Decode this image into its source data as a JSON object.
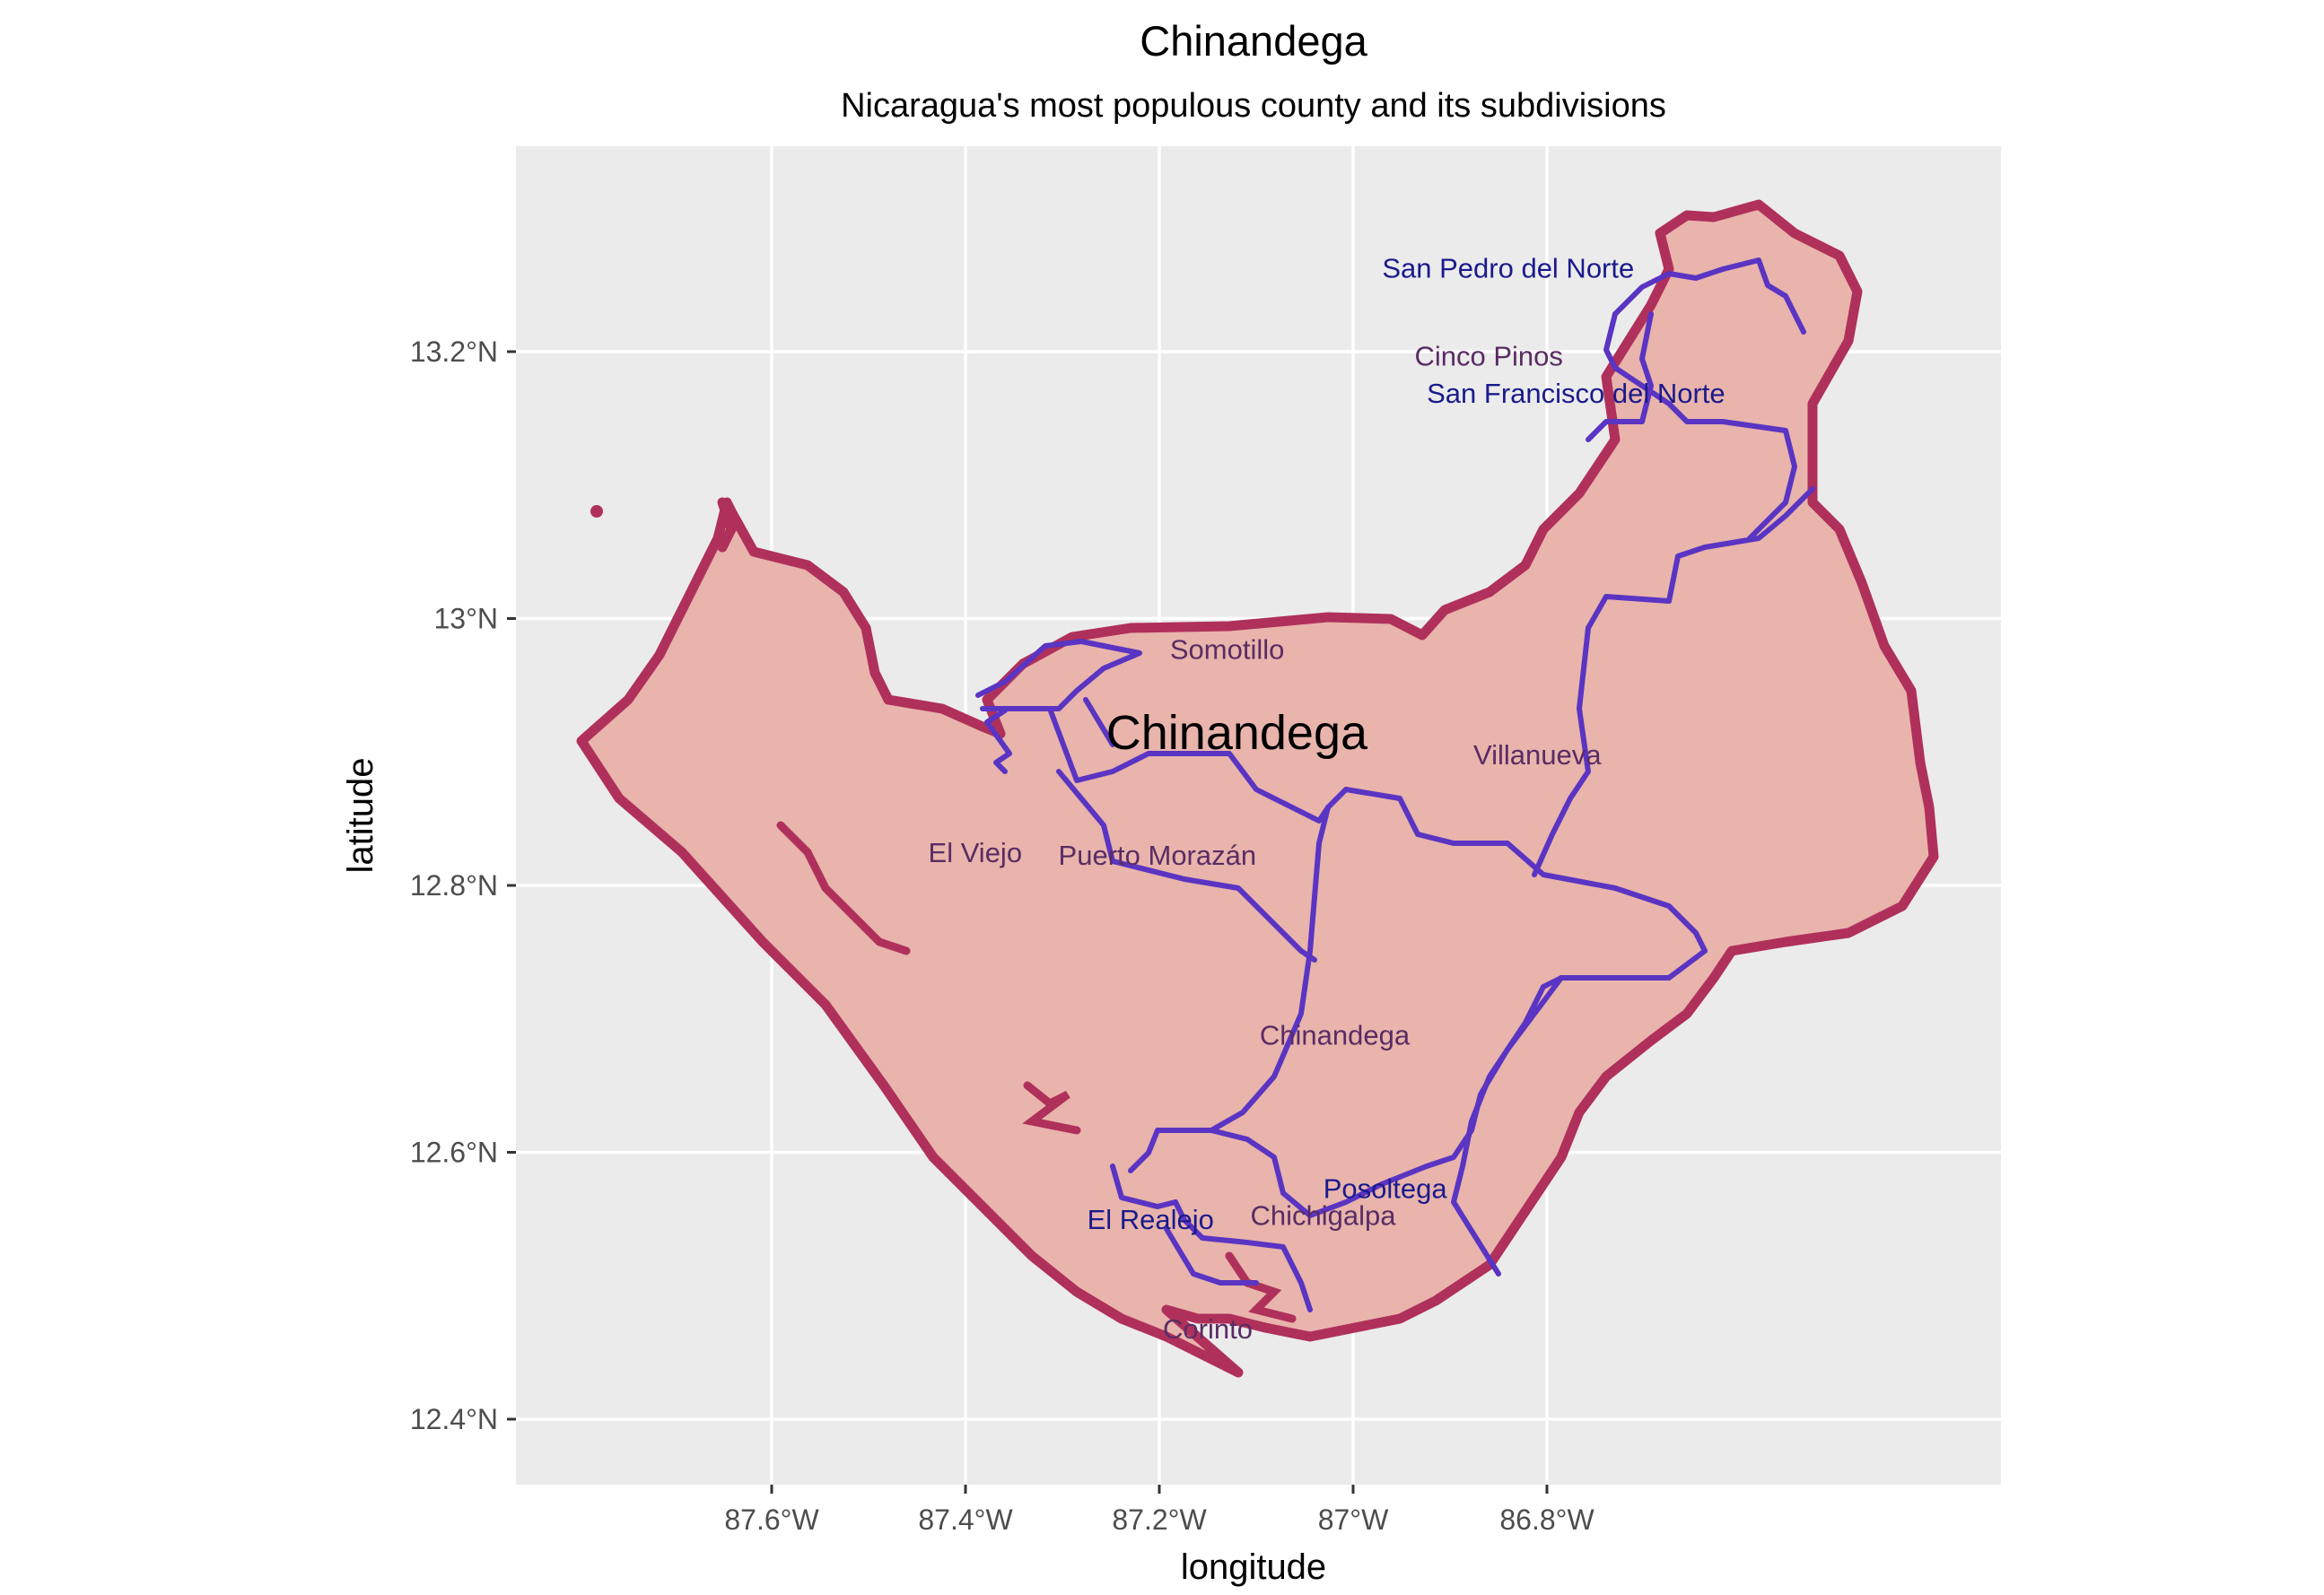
{
  "title": "Chinandega",
  "subtitle": "Nicaragua's most populous county and its subdivisions",
  "xlabel": "longitude",
  "ylabel": "latitude",
  "x_ticks": [
    {
      "value": -87.6,
      "label": "87.6°W"
    },
    {
      "value": -87.4,
      "label": "87.4°W"
    },
    {
      "value": -87.2,
      "label": "87.2°W"
    },
    {
      "value": -87.0,
      "label": "87°W"
    },
    {
      "value": -86.8,
      "label": "86.8°W"
    }
  ],
  "y_ticks": [
    {
      "value": 12.4,
      "label": "12.4°N"
    },
    {
      "value": 12.6,
      "label": "12.6°N"
    },
    {
      "value": 12.8,
      "label": "12.8°N"
    },
    {
      "value": 13.0,
      "label": "13°N"
    },
    {
      "value": 13.2,
      "label": "13.2°N"
    }
  ],
  "county": {
    "name": "Chinandega",
    "lon": -87.12,
    "lat": 12.915
  },
  "municipalities": [
    {
      "name": "San Pedro del Norte",
      "lon": -86.84,
      "lat": 13.263,
      "color": "blue"
    },
    {
      "name": "Cinco Pinos",
      "lon": -86.86,
      "lat": 13.197,
      "color": "purple"
    },
    {
      "name": "San Francisco del Norte",
      "lon": -86.77,
      "lat": 13.169,
      "color": "blue"
    },
    {
      "name": "Somotillo",
      "lon": -87.13,
      "lat": 12.977,
      "color": "purple"
    },
    {
      "name": "Villanueva",
      "lon": -86.81,
      "lat": 12.898,
      "color": "purple"
    },
    {
      "name": "El Viejo",
      "lon": -87.39,
      "lat": 12.825,
      "color": "purple"
    },
    {
      "name": "Puerto Morazán",
      "lon": -87.202,
      "lat": 12.823,
      "color": "purple"
    },
    {
      "name": "Chinandega",
      "lon": -87.019,
      "lat": 12.688,
      "color": "purple"
    },
    {
      "name": "Posoltega",
      "lon": -86.967,
      "lat": 12.573,
      "color": "blue"
    },
    {
      "name": "Chichigalpa",
      "lon": -87.031,
      "lat": 12.553,
      "color": "purple"
    },
    {
      "name": "El Realejo",
      "lon": -87.209,
      "lat": 12.55,
      "color": "blue"
    },
    {
      "name": "Corinto",
      "lon": -87.15,
      "lat": 12.468,
      "color": "purple"
    }
  ],
  "colors": {
    "panel_background": "#ebebeb",
    "gridline": "#ffffff",
    "county_fill": "#e8b4ac",
    "county_border": "#b0305c",
    "subdivision_lines": "#5a34c2"
  }
}
